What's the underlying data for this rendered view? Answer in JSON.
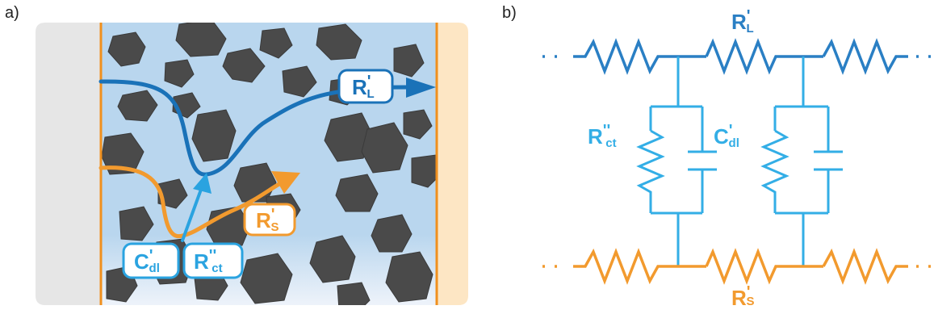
{
  "colors": {
    "electrolyte": "#b9d6ee",
    "current_collector_left": "#e6e6e6",
    "current_collector_right": "#fde6c4",
    "separator_line": "#f0901e",
    "particle": "#4a4a4a",
    "particle_edge": "#333333",
    "ionic_path": "#1a72b8",
    "electronic_path": "#f29a2e",
    "charge_transfer": "#2aa3e0",
    "circuit_blue": "#2a7fc4",
    "circuit_light_blue": "#33aee6",
    "circuit_orange": "#f29a2e"
  },
  "panel_a": {
    "label": "a)",
    "labels": {
      "rl": {
        "main": "R",
        "prime": "'",
        "sub": "L"
      },
      "rs": {
        "main": "R",
        "prime": "'",
        "sub": "S"
      },
      "cdl": {
        "main": "C",
        "prime": "'",
        "sub": "dl"
      },
      "rct": {
        "main": "R",
        "prime": "''",
        "sub": "ct"
      }
    }
  },
  "panel_b": {
    "label": "b)",
    "labels": {
      "rl": {
        "main": "R",
        "prime": "'",
        "sub": "L"
      },
      "rs": {
        "main": "R",
        "prime": "'",
        "sub": "S"
      },
      "cdl": {
        "main": "C",
        "prime": "'",
        "sub": "dl"
      },
      "rct": {
        "main": "R",
        "prime": "''",
        "sub": "ct"
      }
    }
  }
}
